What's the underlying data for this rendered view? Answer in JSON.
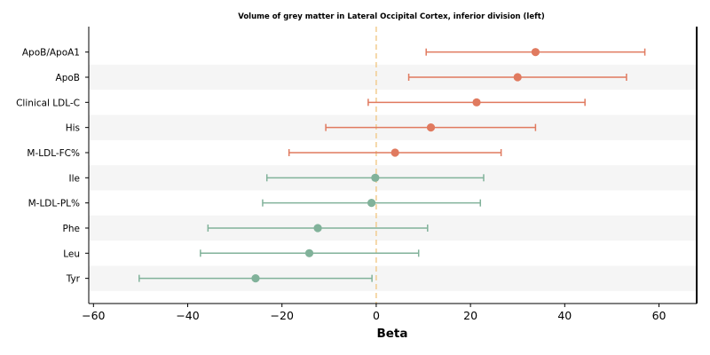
{
  "chart_data": {
    "type": "forest",
    "title": "Volume of grey matter in Lateral Occipital Cortex, inferior division (left)",
    "xlabel": "Beta",
    "xlim": [
      -61,
      68
    ],
    "xticks": [
      -60,
      -40,
      -20,
      0,
      20,
      40,
      60
    ],
    "xtick_labels": [
      "−60",
      "−40",
      "−20",
      "0",
      "20",
      "40",
      "60"
    ],
    "reference_line": 0,
    "colors": {
      "positive": "#e07a5f",
      "negative": "#81b29a",
      "reference": "#f2cc8f",
      "band": "#f5f5f5"
    },
    "rows": [
      {
        "label": "ApoB/ApoA1",
        "beta": 33.8,
        "lo": 10.6,
        "hi": 57.0,
        "group": "positive"
      },
      {
        "label": "ApoB",
        "beta": 30.0,
        "lo": 6.9,
        "hi": 53.1,
        "group": "positive"
      },
      {
        "label": "Clinical LDL-C",
        "beta": 21.3,
        "lo": -1.7,
        "hi": 44.3,
        "group": "positive"
      },
      {
        "label": "His",
        "beta": 11.6,
        "lo": -10.7,
        "hi": 33.8,
        "group": "positive"
      },
      {
        "label": "M-LDL-FC%",
        "beta": 4.0,
        "lo": -18.5,
        "hi": 26.5,
        "group": "positive"
      },
      {
        "label": "Ile",
        "beta": -0.2,
        "lo": -23.2,
        "hi": 22.8,
        "group": "negative"
      },
      {
        "label": "M-LDL-PL%",
        "beta": -1.0,
        "lo": -24.1,
        "hi": 22.1,
        "group": "negative"
      },
      {
        "label": "Phe",
        "beta": -12.4,
        "lo": -35.7,
        "hi": 10.9,
        "group": "negative"
      },
      {
        "label": "Leu",
        "beta": -14.2,
        "lo": -37.3,
        "hi": 9.0,
        "group": "negative"
      },
      {
        "label": "Tyr",
        "beta": -25.6,
        "lo": -50.3,
        "hi": -0.9,
        "group": "negative"
      }
    ]
  }
}
